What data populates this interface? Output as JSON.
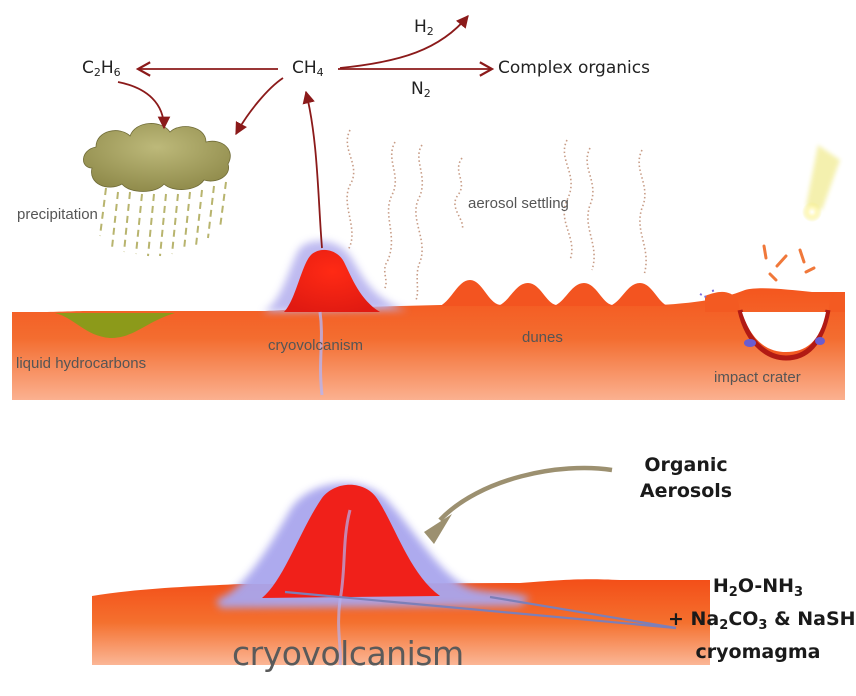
{
  "top_panel": {
    "molecules": {
      "c2h6": {
        "main": "C",
        "sub1": "2",
        "mid": "H",
        "sub2": "6"
      },
      "ch4": {
        "main": "CH",
        "sub": "4"
      },
      "h2": {
        "main": "H",
        "sub": "2"
      },
      "n2": {
        "main": "N",
        "sub": "2"
      },
      "complex_organics": "Complex organics"
    },
    "labels": {
      "precipitation": "precipitation",
      "aerosol_settling": "aerosol settling",
      "liquid_hydrocarbons": "liquid hydrocarbons",
      "cryovolcanism": "cryovolcanism",
      "dunes": "dunes",
      "impact_crater": "impact crater"
    }
  },
  "bottom_panel": {
    "title_label": "cryovolcanism",
    "organic_aerosols": {
      "line1": "Organic",
      "line2": "Aerosols"
    },
    "cryomagma": {
      "l1_a": "H",
      "l1_sub1": "2",
      "l1_b": "O-NH",
      "l1_sub2": "3",
      "l2_a": "+ Na",
      "l2_sub1": "2",
      "l2_b": "CO",
      "l2_sub2": "3",
      "l2_c": " & NaSH",
      "l3": "cryomagma"
    }
  },
  "colors": {
    "surface_orange": "#f26a2a",
    "cone_red": "#f21a10",
    "ice_lavender": "#a9a6e8",
    "arrow_maroon": "#8b1a1a",
    "cloud_olive": "#a6a060",
    "pointer_arrow": "#9c9070"
  }
}
